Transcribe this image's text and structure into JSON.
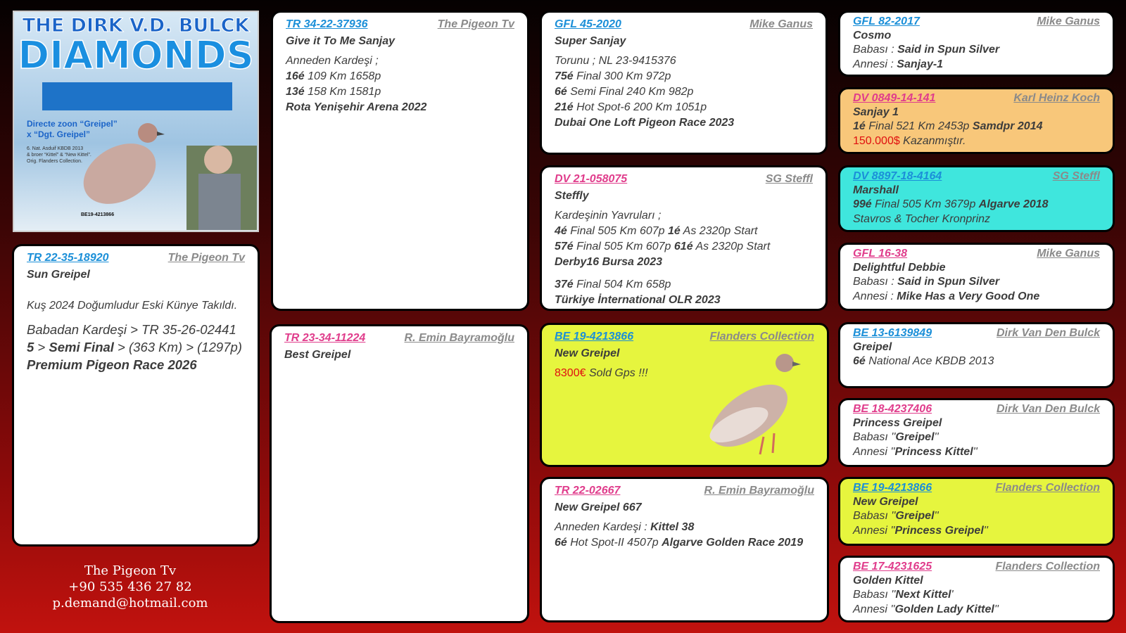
{
  "header_image": {
    "title_top": "THE DIRK V.D. BULCK",
    "title_main": "DIAMONDS",
    "caption": [
      "Directe zoon “Greipel”",
      "x “Dgt. Greipel”"
    ],
    "notes": [
      "6. Nat. Asduif KBDB 2013",
      "& broer “Kittel” & “New Kittel”.",
      "Orig. Flanders Collection."
    ],
    "ring": "BE19-4213866"
  },
  "contact": {
    "name": "The Pigeon Tv",
    "phone": "+90 535 436 27 82",
    "email": "p.demand@hotmail.com"
  },
  "cards": [
    {
      "ring": "TR 22-35-18920",
      "owner": "The Pigeon Tv",
      "name": "Sun Greipel",
      "lines": [
        [
          "Kuş 2024 Doğumludur Eski Künye Takıldı."
        ],
        [
          "Babadan Kardeşi > TR 35-26-02441"
        ],
        [
          "5",
          " > ",
          "Semi Final",
          " > (363 Km) > (1297p)"
        ],
        [
          "Premium Pigeon Race 2026"
        ]
      ]
    },
    {
      "ring": "TR 34-22-37936",
      "owner": "The Pigeon Tv",
      "name": "Give it To Me Sanjay",
      "lines": [
        [
          "Anneden Kardeşi ;"
        ],
        [
          "16é",
          " 109 Km 1658p"
        ],
        [
          "13é",
          " 158 Km 1581p"
        ],
        [
          "Rota Yenişehir Arena 2022"
        ]
      ]
    },
    {
      "ring": "TR 23-34-11224",
      "owner": "R. Emin Bayramoğlu",
      "name": "Best Greipel",
      "lines": []
    },
    {
      "ring": "GFL 45-2020",
      "owner": "Mike Ganus",
      "name": "Super Sanjay",
      "lines": [
        [
          "Torunu ; NL 23-9415376"
        ],
        [
          "75é",
          " Final 300 Km 972p"
        ],
        [
          "6é",
          " Semi Final 240 Km 982p"
        ],
        [
          "21é",
          " Hot Spot-6 200 Km 1051p"
        ],
        [
          "Dubai One Loft Pigeon Race 2023"
        ]
      ]
    },
    {
      "ring": "DV 21-058075",
      "owner": "SG Steffl",
      "name": "Steffly",
      "lines": [
        [
          "Kardeşinin Yavruları ;"
        ],
        [
          "4é",
          " Final 505 Km 607p ",
          "1é",
          " As 2320p Start"
        ],
        [
          "57é",
          " Final 505 Km 607p ",
          "61é",
          " As 2320p Start"
        ],
        [
          "Derby16 Bursa 2023"
        ],
        [
          "37é",
          " Final 504 Km 658p"
        ],
        [
          "Türkiye İnternational OLR 2023"
        ]
      ]
    },
    {
      "ring": "BE 19-4213866",
      "owner": "Flanders Collection",
      "name": "New Greipel",
      "lines": [
        [
          "8300€",
          " Sold Gps !!!"
        ]
      ]
    },
    {
      "ring": "TR 22-02667",
      "owner": "R. Emin Bayramoğlu",
      "name": "New Greipel 667",
      "lines": [
        [
          "Anneden Kardeşi : ",
          "Kittel 38"
        ],
        [
          "6é",
          " Hot Spot-II 4507p ",
          "Algarve Golden Race 2019"
        ]
      ]
    },
    {
      "ring": "GFL 82-2017",
      "owner": "Mike Ganus",
      "name": "Cosmo",
      "lines": [
        [
          "Babası : ",
          "Said in Spun Silver"
        ],
        [
          "Annesi : ",
          "Sanjay-1"
        ]
      ]
    },
    {
      "ring": "DV 0849-14-141",
      "owner": "Karl Heinz Koch",
      "name": "Sanjay 1",
      "lines": [
        [
          "1é",
          " Final 521 Km 2453p ",
          "Samdpr 2014"
        ],
        [
          "150.000$",
          " Kazanmıştır."
        ]
      ]
    },
    {
      "ring": "DV 8897-18-4164",
      "owner": "SG Steffl",
      "name": "Marshall",
      "lines": [
        [
          "99é",
          " Final 505 Km 3679p ",
          "Algarve 2018"
        ],
        [
          "Stavros & Tocher Kronprinz"
        ]
      ]
    },
    {
      "ring": "GFL 16-38",
      "owner": "Mike Ganus",
      "name": "Delightful Debbie",
      "lines": [
        [
          "Babası : ",
          "Said in Spun Silver"
        ],
        [
          "Annesi : ",
          "Mike Has a Very Good One"
        ]
      ]
    },
    {
      "ring": "BE 13-6139849",
      "owner": "Dirk Van Den Bulck",
      "name": "Greipel",
      "lines": [
        [
          "6é",
          " National Ace KBDB 2013"
        ]
      ]
    },
    {
      "ring": "BE 18-4237406",
      "owner": "Dirk Van Den Bulck",
      "name": "Princess Greipel",
      "lines": [
        [
          "Babası ''",
          "Greipel",
          "''"
        ],
        [
          "Annesi ''",
          "Princess Kittel",
          "''"
        ]
      ]
    },
    {
      "ring": "BE 19-4213866",
      "owner": "Flanders Collection",
      "name": "New Greipel",
      "lines": [
        [
          "Babası ''",
          "Greipel",
          "''"
        ],
        [
          "Annesi ''",
          "Princess Greipel",
          "''"
        ]
      ]
    },
    {
      "ring": "BE 17-4231625",
      "owner": "Flanders Collection",
      "name": "Golden Kittel",
      "lines": [
        [
          "Babası ''",
          "Next Kittel",
          "'"
        ],
        [
          "Annesi ''",
          "Golden Lady Kittel",
          "''"
        ]
      ]
    }
  ]
}
